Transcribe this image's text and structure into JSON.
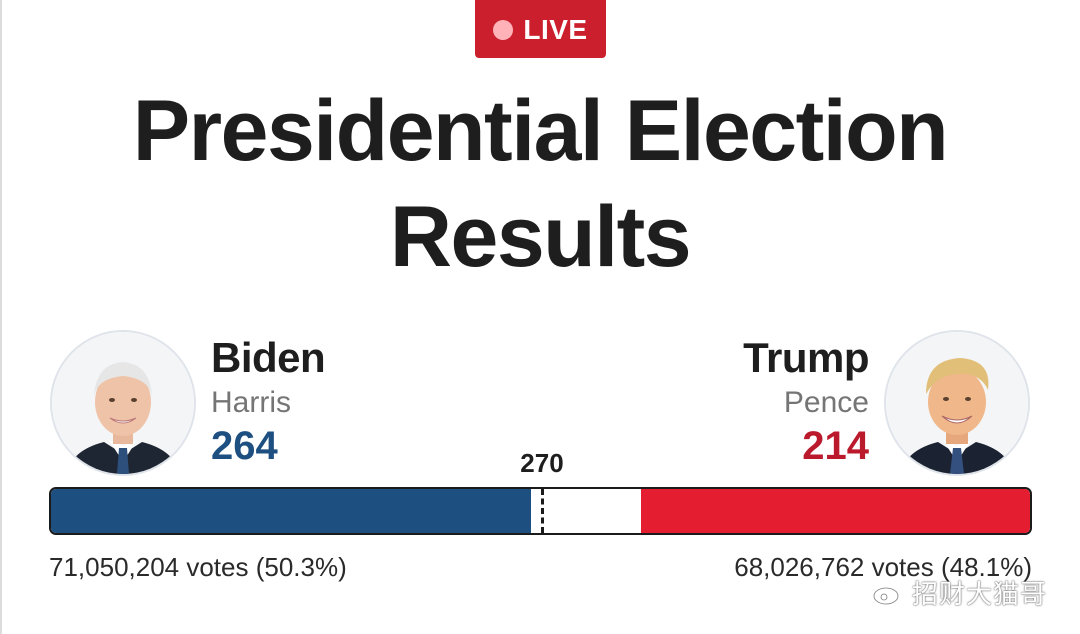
{
  "badge": {
    "label": "LIVE"
  },
  "headline": {
    "line1": "Presidential Election",
    "line2": "Results"
  },
  "race": {
    "threshold": 270,
    "threshold_label": "270",
    "total_electoral_votes": 538,
    "left": {
      "name": "Biden",
      "running_mate": "Harris",
      "electoral_votes_label": "264",
      "electoral_votes": 264,
      "popular_votes_label": "71,050,204 votes (50.3%)",
      "color": "#1d4f80",
      "photo_icon": "portrait-biden"
    },
    "right": {
      "name": "Trump",
      "running_mate": "Pence",
      "electoral_votes_label": "214",
      "electoral_votes": 214,
      "popular_votes_label": "68,026,762 votes (48.1%)",
      "color": "#e51d30",
      "photo_icon": "portrait-trump"
    }
  },
  "watermark": {
    "text": "招财大猫哥",
    "logo_icon": "weibo-logo"
  }
}
